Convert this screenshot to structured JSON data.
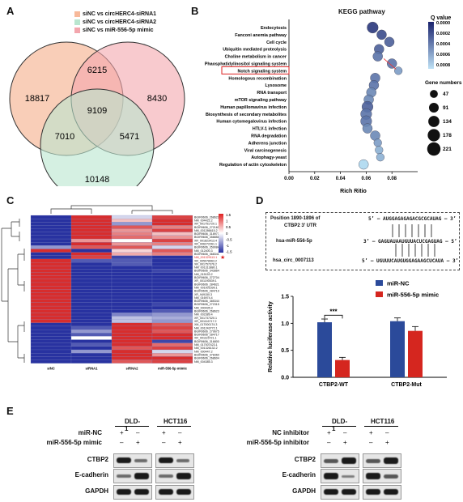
{
  "panels": {
    "a": "A",
    "b": "B",
    "c": "C",
    "d": "D",
    "e": "E"
  },
  "venn": {
    "legend": [
      {
        "label": "siNC vs circHERC4-siRNA1",
        "color": "#f7b99a"
      },
      {
        "label": "siNC vs circHERC4-siRNA2",
        "color": "#b9e6cf"
      },
      {
        "label": "siNC vs miR-556-5p mimic",
        "color": "#f3a6ad"
      }
    ],
    "counts": {
      "a_only": "18817",
      "b_only": "8430",
      "c_only": "10148",
      "ab": "6215",
      "ac": "7010",
      "bc": "5471",
      "abc": "9109"
    }
  },
  "kegg": {
    "title": "KEGG pathway",
    "xlabel": "Rich Ritio",
    "xticks": [
      "0.00",
      "0.02",
      "0.04",
      "0.06",
      "0.08"
    ],
    "qlabel": "Q value",
    "qticks": [
      "0.0000",
      "0.0002",
      "0.0004",
      "0.0006",
      "0.0008"
    ],
    "gene_label": "Gene numbers",
    "gene_sizes": [
      "47",
      "91",
      "134",
      "178",
      "221"
    ],
    "highlight": "Notch signaling system"
  },
  "chart_data": [
    {
      "type": "scatter",
      "title": "KEGG pathway",
      "xlabel": "Rich Ritio",
      "xlim": [
        0,
        0.1
      ],
      "pathways": [
        "Endocytosis",
        "Fanconi anemia pathway",
        "Cell cycle",
        "Ubiquitin mediated proteolysis",
        "Choline metabolism in cancer",
        "Phaosphatidylinositol signaling system",
        "Notch signaling system",
        "Homologous recombination",
        "Lysosome",
        "RNA transport",
        "mTOR signaling pathway",
        "Human papillomavirus infection",
        "Biosynthesis of secondary metabolites",
        "Human cytomegalovirus infection",
        "HTLV-1 infection",
        "RNA degradation",
        "Adherens junction",
        "Viral carcinogenesis",
        "Autophagy-yeast",
        "Regulation of actin cytoskeleton"
      ],
      "rich": [
        0.065,
        0.072,
        0.078,
        0.07,
        0.069,
        0.08,
        0.085,
        0.067,
        0.066,
        0.064,
        0.062,
        0.061,
        0.06,
        0.06,
        0.061,
        0.067,
        0.069,
        0.07,
        0.071,
        0.058
      ],
      "genes": [
        134,
        91,
        91,
        91,
        91,
        91,
        47,
        91,
        91,
        91,
        91,
        134,
        134,
        134,
        91,
        91,
        47,
        47,
        47,
        91
      ],
      "qvalue": [
        0.0001,
        0.0002,
        0.0003,
        0.0003,
        0.0004,
        0.0004,
        0.0006,
        0.0004,
        0.0004,
        0.0005,
        0.0005,
        0.0003,
        0.0004,
        0.0004,
        0.0005,
        0.0005,
        0.0006,
        0.0007,
        0.0007,
        0.0009
      ]
    },
    {
      "type": "bar",
      "ylabel": "Relative luciferase activity",
      "categories": [
        "CTBP2-WT",
        "CTBP2-Mut"
      ],
      "series": [
        {
          "name": "miR-NC",
          "values": [
            1.02,
            1.04
          ],
          "color": "#2b4a9a"
        },
        {
          "name": "miR-556-5p mimic",
          "values": [
            0.32,
            0.86
          ],
          "color": "#d5261f"
        }
      ],
      "errors": [
        [
          0.06,
          0.06
        ],
        [
          0.05,
          0.08
        ]
      ],
      "ylim": [
        0,
        1.5
      ],
      "yticks": [
        "0.0",
        "0.5",
        "1.0",
        "1.5"
      ],
      "annotation": "***"
    }
  ],
  "heatmap": {
    "columns": [
      "siNC",
      "siRNA1",
      "siRNA2",
      "miR-556-5p mimic"
    ],
    "genes": [
      "BGIR9606_268622",
      "NM_004422.2",
      "XR_001751720.1",
      "BGIR9606_272160",
      "NM_001286615.2",
      "BGIR9606_318977",
      "BGIR9606_358858",
      "XR_001823413.4",
      "XR_006272261.1",
      "BGIR9606_359084",
      "NM_012400.3",
      "BGIR9606_368341",
      "NM_001329113.1",
      "XR_005078963.2",
      "XR_001757376.2",
      "NM_001313880.1",
      "BGIR9606_343864",
      "NM_015153.2",
      "BGIR9606_372704",
      "XR_001190539.1",
      "BGIR9606_284621",
      "NM_001001599.1",
      "BGIR9606_284719",
      "XR_949150.3",
      "NM_016974.4",
      "BGIR9606_385344",
      "BGIR9606_272315",
      "NM_000435.3",
      "BGIR9606_268623",
      "NM_002389.4",
      "XR_001737320.1",
      "XR_001116717.2",
      "XM_017000174.3",
      "NM_001243772.1",
      "BGIR9606_279675",
      "BGIR9606_284717",
      "XR_001115721.1",
      "BGIR9606_316800",
      "NM_017007423.1",
      "NM_001326132.2",
      "NM_000447.2",
      "BGIR9606_378360",
      "BGIR9606_268604",
      "NM_004385.3"
    ],
    "highlight_gene": "NM_001329113.1",
    "scale": [
      "1.5",
      "1",
      "0.5",
      "0",
      "-0.5",
      "-1",
      "-1.5"
    ],
    "matrix": [
      [
        -1,
        1,
        -0.2,
        0.9
      ],
      [
        -1,
        1,
        0.3,
        1
      ],
      [
        -1,
        1,
        -0.5,
        1
      ],
      [
        -1,
        1,
        0.8,
        0.6
      ],
      [
        -1,
        1,
        0.5,
        0.9
      ],
      [
        -1,
        1,
        0.6,
        0.3
      ],
      [
        -1,
        1,
        0.7,
        0.5
      ],
      [
        -1,
        0.5,
        0,
        0.9
      ],
      [
        -1,
        1,
        0.5,
        0.6
      ],
      [
        -0.5,
        0.8,
        0.8,
        -0.2
      ],
      [
        1,
        -1,
        0.2,
        0.8
      ],
      [
        -1,
        1,
        0.4,
        0.6
      ],
      [
        -1,
        0.9,
        -0.9,
        -1
      ],
      [
        1,
        -0.8,
        -0.8,
        -1
      ],
      [
        1,
        -1,
        -0.8,
        -1
      ],
      [
        1,
        -1,
        -1,
        -1
      ],
      [
        1,
        -1,
        -1,
        -0.9
      ],
      [
        1,
        -1,
        -1,
        -1
      ],
      [
        1,
        -1,
        -1,
        -1
      ],
      [
        1,
        -1,
        -1,
        -1
      ],
      [
        1,
        -1,
        -1,
        -1
      ],
      [
        1,
        -1,
        -1,
        -1
      ],
      [
        1,
        -1,
        -1,
        -1
      ],
      [
        1,
        -1,
        -1,
        -1
      ],
      [
        1,
        -1,
        -1,
        -1
      ],
      [
        1,
        -1,
        -1,
        -1
      ],
      [
        1,
        -1,
        -1,
        -0.9
      ],
      [
        1,
        -1,
        -1,
        -1
      ],
      [
        1,
        -1,
        -1,
        -0.8
      ],
      [
        1,
        -1,
        -0.6,
        -0.5
      ],
      [
        1,
        -1,
        -0.3,
        -0.4
      ],
      [
        1,
        -1,
        -0.3,
        -0.5
      ],
      [
        -1,
        -1,
        1,
        0.8
      ],
      [
        -1,
        -0.8,
        1,
        0.9
      ],
      [
        -1,
        -0.5,
        1,
        0.8
      ],
      [
        -1,
        -0.8,
        1,
        1
      ],
      [
        -1,
        0,
        1,
        1
      ],
      [
        -1,
        -1,
        1,
        -0.9
      ],
      [
        -1,
        -0.8,
        1,
        0.7
      ],
      [
        -1,
        -1,
        0.8,
        0.9
      ],
      [
        -1,
        -0.5,
        1,
        -0.2
      ],
      [
        -1,
        -1,
        1,
        0.5
      ],
      [
        -1,
        -1,
        1,
        1
      ],
      [
        -1,
        -1,
        0.8,
        0.9
      ]
    ]
  },
  "seq": {
    "rows": [
      {
        "label": "Position 1890-1896 of",
        "seq": "5’ – AUGGAGAGAGACGCGCAUAG – 3’"
      },
      {
        "label": "CTBP2 3’ UTR",
        "seq": ""
      },
      {
        "label": "hsa-miR-556-5p",
        "seq": "3’ – GAGUAUAAUGUUACUCGAGUAG – 5’"
      },
      {
        "label": "hsa_circ_0007113",
        "seq": "5’ – UGUUUCAUGUGGAGAAGCUCAUA – 3’"
      }
    ]
  },
  "wb": {
    "left": {
      "cells": [
        "DLD-1",
        "HCT116"
      ],
      "rows": [
        "miR-NC",
        "miR-556-5p mimic"
      ],
      "signs": [
        [
          "+",
          "–",
          "+",
          "–"
        ],
        [
          "–",
          "+",
          "–",
          "+"
        ]
      ],
      "proteins": [
        "CTBP2",
        "E-cadherin",
        "GAPDH"
      ]
    },
    "right": {
      "cells": [
        "DLD-1",
        "HCT116"
      ],
      "rows": [
        "NC inhibitor",
        "miR-556-5p inhibitor"
      ],
      "signs": [
        [
          "+",
          "–",
          "+",
          "–"
        ],
        [
          "–",
          "+",
          "–",
          "+"
        ]
      ],
      "proteins": [
        "CTBP2",
        "E-cadherin",
        "GAPDH"
      ]
    }
  }
}
